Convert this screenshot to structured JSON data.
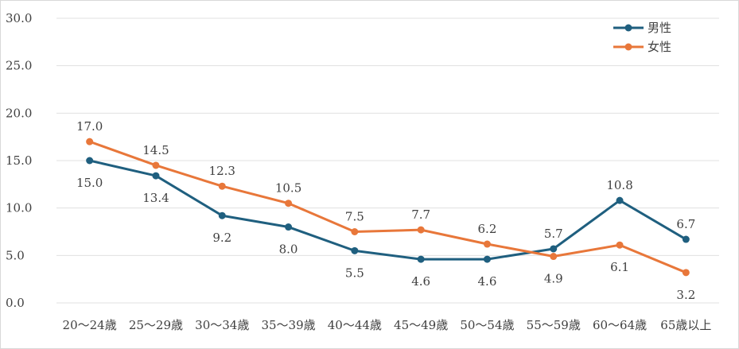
{
  "chart_data": {
    "type": "line",
    "categories": [
      "20～24歳",
      "25～29歳",
      "30～34歳",
      "35～39歳",
      "40～44歳",
      "45～49歳",
      "50～54歳",
      "55～59歳",
      "60～64歳",
      "65歳以上"
    ],
    "series": [
      {
        "name": "男性",
        "color": "#1f5f7f",
        "values": [
          15.0,
          13.4,
          9.2,
          8.0,
          5.5,
          4.6,
          4.6,
          5.7,
          10.8,
          6.7
        ],
        "labels": [
          "15.0",
          "13.4",
          "9.2",
          "8.0",
          "5.5",
          "4.6",
          "4.6",
          "5.7",
          "10.8",
          "6.7"
        ],
        "label_side": [
          "below",
          "below",
          "below",
          "below",
          "below",
          "below",
          "below",
          "above",
          "above",
          "above"
        ]
      },
      {
        "name": "女性",
        "color": "#e8773a",
        "values": [
          17.0,
          14.5,
          12.3,
          10.5,
          7.5,
          7.7,
          6.2,
          4.9,
          6.1,
          3.2
        ],
        "labels": [
          "17.0",
          "14.5",
          "12.3",
          "10.5",
          "7.5",
          "7.7",
          "6.2",
          "4.9",
          "6.1",
          "3.2"
        ],
        "label_side": [
          "above",
          "above",
          "above",
          "above",
          "above",
          "above",
          "above",
          "below",
          "below",
          "below"
        ]
      }
    ],
    "yticks": [
      "0.0",
      "5.0",
      "10.0",
      "15.0",
      "20.0",
      "25.0",
      "30.0"
    ],
    "ylim": [
      0,
      30
    ],
    "grid": true,
    "legend": "top-right"
  }
}
